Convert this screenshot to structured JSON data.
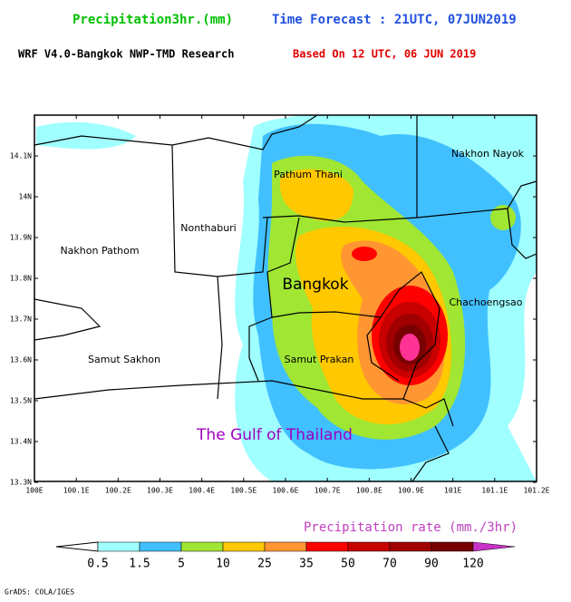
{
  "header": {
    "variable": "Precipitation3hr.(mm)",
    "forecast": "Time Forecast : 21UTC, 07JUN2019",
    "model": "WRF V4.0-Bangkok NWP-TMD Research",
    "based_on": "Based On 12 UTC, 06 JUN 2019"
  },
  "map": {
    "lat_labels": [
      "14.1N",
      "14N",
      "13.9N",
      "13.8N",
      "13.7N",
      "13.6N",
      "13.5N",
      "13.4N",
      "13.3N"
    ],
    "lon_labels": [
      "100E",
      "100.1E",
      "100.2E",
      "100.3E",
      "100.4E",
      "100.5E",
      "100.6E",
      "100.7E",
      "100.8E",
      "100.9E",
      "101E",
      "101.1E",
      "101.2E"
    ],
    "places": [
      "Pathum Thani",
      "Nakhon Nayok",
      "Nonthaburi",
      "Nakhon Pathom",
      "Bangkok",
      "Chachoengsao",
      "Samut Sakhon",
      "Samut Prakan",
      "The Gulf of Thailand"
    ]
  },
  "legend": {
    "title": "Precipitation rate (mm./3hr)",
    "levels": [
      0.5,
      1.5,
      5,
      10,
      25,
      35,
      50,
      70,
      90,
      120
    ]
  },
  "footer": "GrADS: COLA/IGES"
}
